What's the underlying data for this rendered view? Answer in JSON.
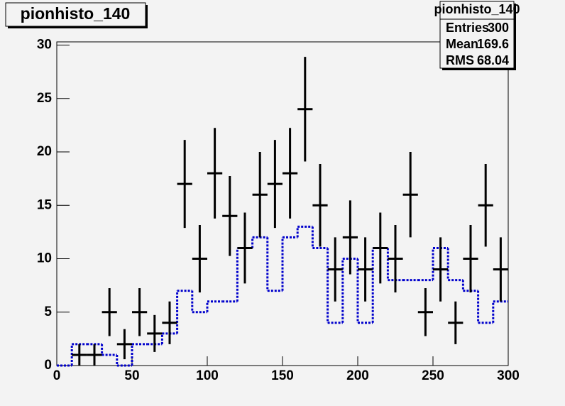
{
  "chart_data": {
    "type": "histogram",
    "title": "pionhisto_140",
    "bins": [
      0,
      10,
      20,
      30,
      40,
      50,
      60,
      70,
      80,
      90,
      100,
      110,
      120,
      130,
      140,
      150,
      160,
      170,
      180,
      190,
      200,
      210,
      220,
      230,
      240,
      250,
      260,
      270,
      280,
      290,
      300
    ],
    "values": [
      null,
      1,
      1,
      5,
      2,
      5,
      3,
      4,
      17,
      10,
      18,
      14,
      11,
      16,
      17,
      18,
      24,
      15,
      9,
      12,
      9,
      11,
      10,
      16,
      5,
      9,
      4,
      10,
      15,
      9
    ],
    "errors": [
      null,
      1,
      1,
      2.24,
      1.41,
      2.24,
      1.73,
      2,
      4.12,
      3.16,
      4.24,
      3.74,
      3.32,
      4,
      4.12,
      4.24,
      4.9,
      3.87,
      3,
      3.46,
      3,
      3.32,
      3.16,
      4,
      2.24,
      3,
      2,
      3.16,
      3.87,
      3
    ],
    "color": "#000000",
    "reference_values": [
      0,
      2,
      2,
      1,
      0,
      2,
      2,
      3,
      7,
      5,
      6,
      6,
      11,
      12,
      7,
      12,
      13,
      11,
      4,
      10,
      4,
      11,
      8,
      8,
      8,
      11,
      8,
      7,
      4,
      6
    ],
    "reference_color": "#0000cc",
    "xlim": [
      0,
      300
    ],
    "xticks": [
      0,
      50,
      100,
      150,
      200,
      250,
      300
    ],
    "ylim": [
      0,
      30.3
    ],
    "yticks": [
      0,
      5,
      10,
      15,
      20,
      25,
      30
    ],
    "stats": [
      {
        "label": "Entries",
        "value": 300
      },
      {
        "label": "Mean",
        "value": 169.6
      },
      {
        "label": "RMS",
        "value": 68.04
      }
    ]
  }
}
